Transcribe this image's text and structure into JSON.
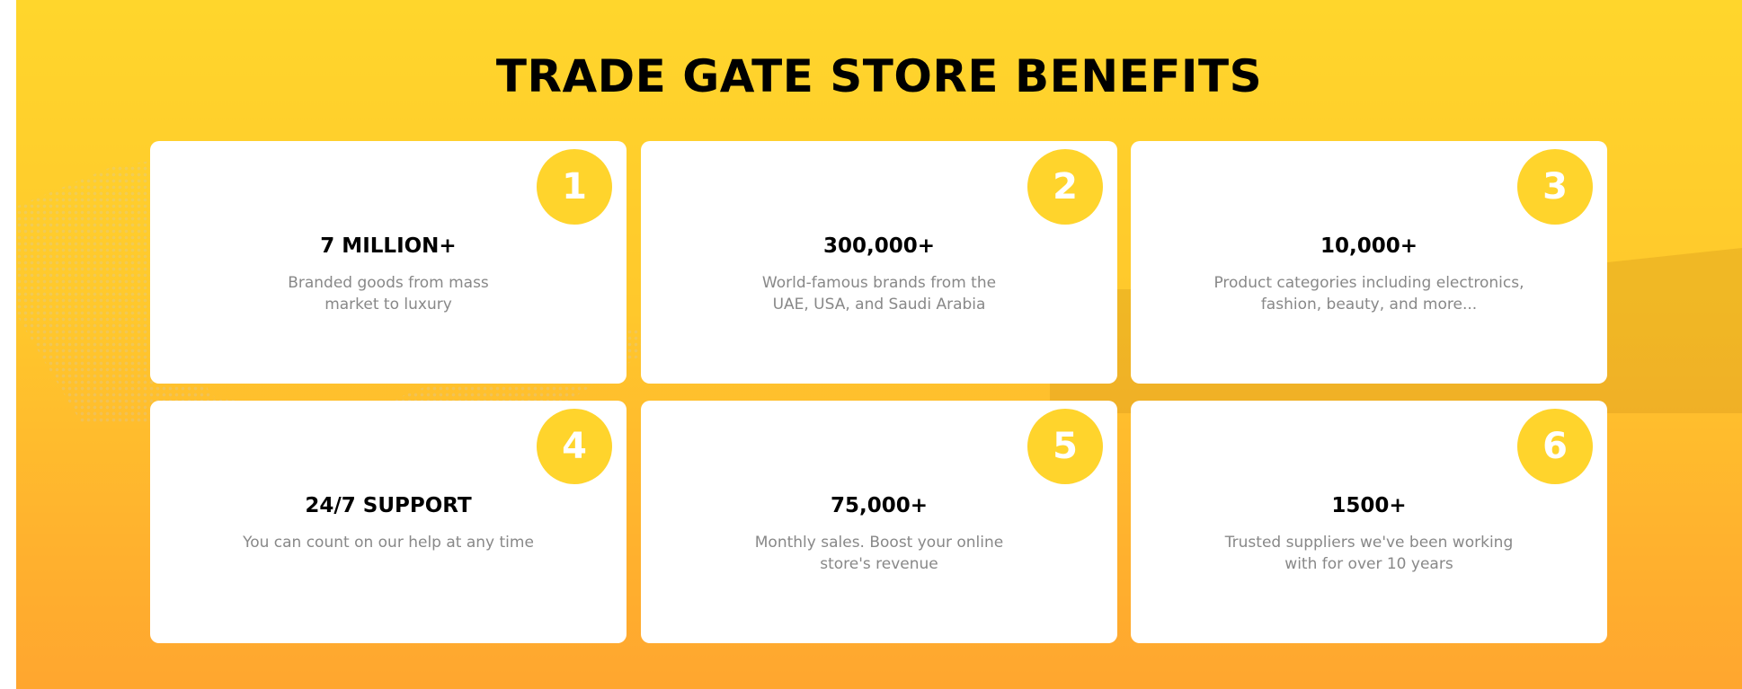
{
  "title": "TRADE GATE STORE BENEFITS",
  "colors": {
    "accent": "#FFD42C",
    "background_top": "#FFD62C",
    "background_bottom": "#FFA62F"
  },
  "benefits": [
    {
      "number": "1",
      "heading": "7 MILLION+",
      "description": "Branded goods from mass market to luxury"
    },
    {
      "number": "2",
      "heading": "300,000+",
      "description": "World-famous brands from the UAE, USA, and Saudi Arabia"
    },
    {
      "number": "3",
      "heading": "10,000+",
      "description": "Product categories including electronics, fashion, beauty, and more..."
    },
    {
      "number": "4",
      "heading": "24/7 SUPPORT",
      "description": "You can count on our help at any time"
    },
    {
      "number": "5",
      "heading": "75,000+",
      "description": "Monthly sales. Boost your online store's revenue"
    },
    {
      "number": "6",
      "heading": "1500+",
      "description": "Trusted suppliers we've been working with for over 10 years"
    }
  ]
}
